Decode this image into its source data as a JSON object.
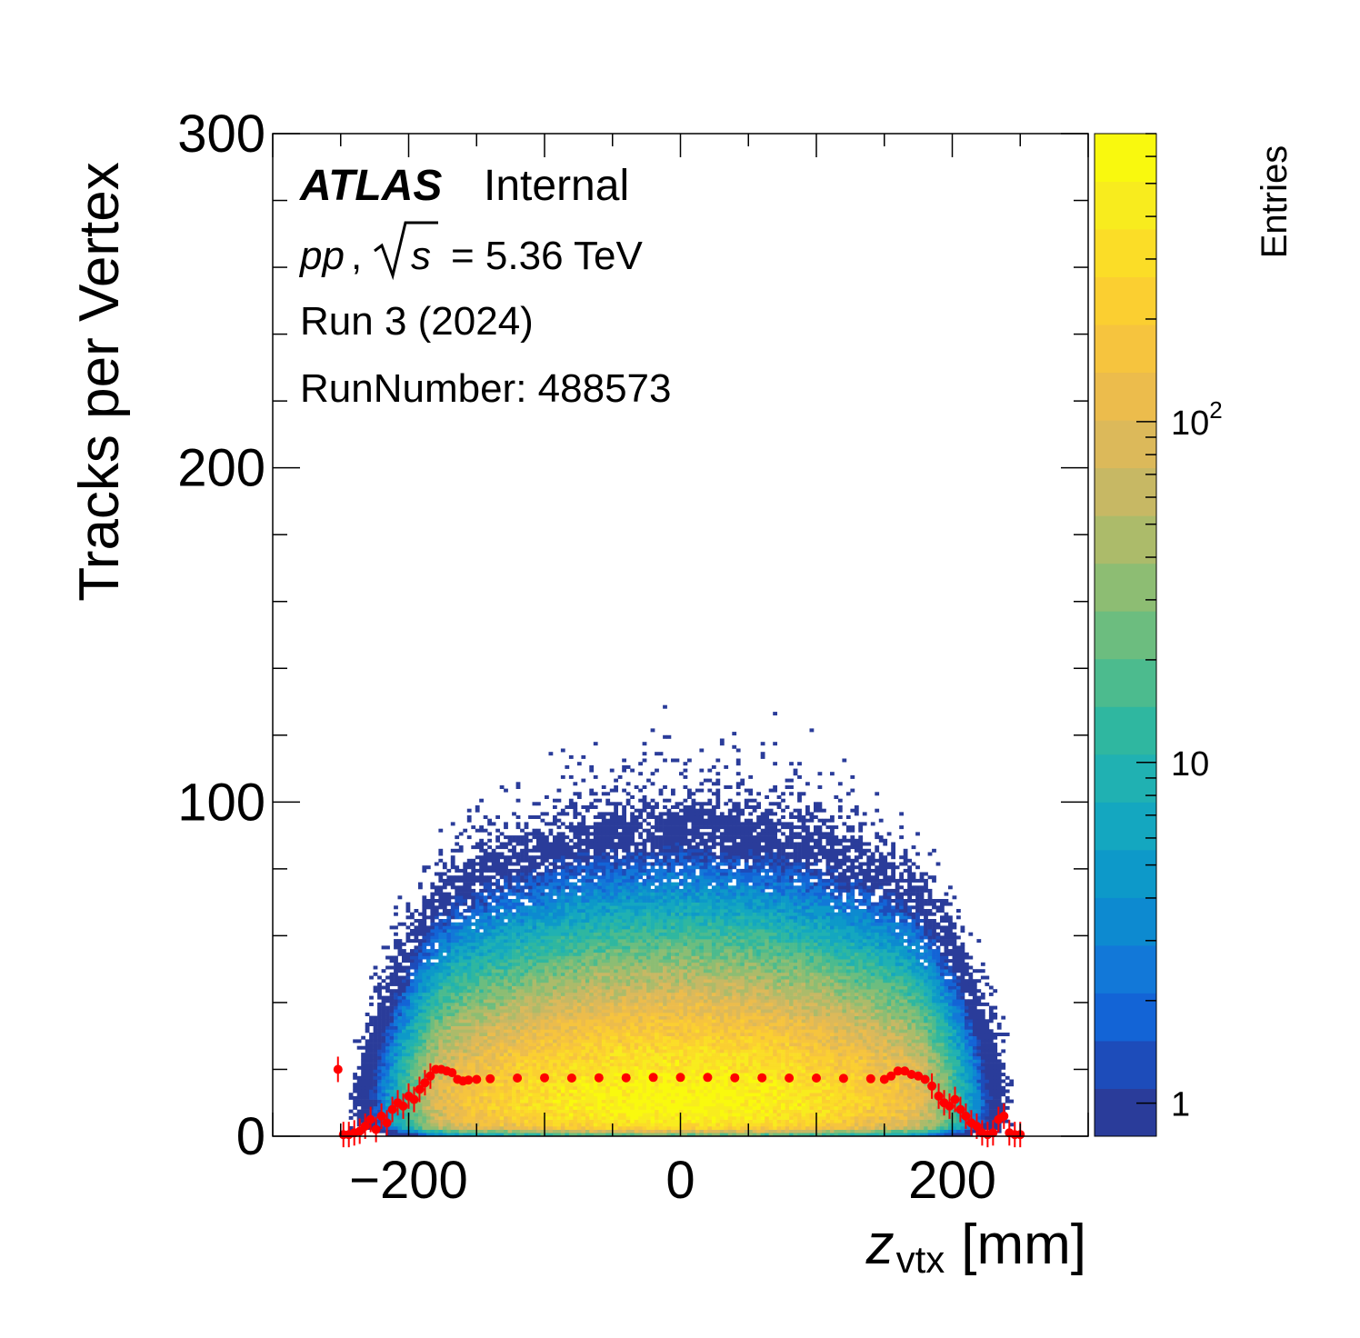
{
  "chart_data": {
    "type": "heatmap",
    "xlabel_main": "z",
    "xlabel_sub": "vtx",
    "xlabel_unit": "[mm]",
    "ylabel": "Tracks per Vertex",
    "xlim": [
      -300,
      300
    ],
    "ylim": [
      0,
      300
    ],
    "x_ticks": [
      {
        "value": -200,
        "label": "−200"
      },
      {
        "value": 0,
        "label": "0"
      },
      {
        "value": 200,
        "label": "200"
      }
    ],
    "y_ticks": [
      {
        "value": 0,
        "label": "0"
      },
      {
        "value": 100,
        "label": "100"
      },
      {
        "value": 200,
        "label": "200"
      },
      {
        "value": 300,
        "label": "300"
      }
    ],
    "colorbar": {
      "title": "Entries",
      "scale": "log",
      "range": [
        0.8,
        700
      ],
      "ticks": [
        {
          "value": 1,
          "label": "1"
        },
        {
          "value": 10,
          "label": "10"
        },
        {
          "value": 100,
          "label_base": "10",
          "label_exp": "2"
        }
      ],
      "palette": [
        "#2a3c9a",
        "#1d4cba",
        "#1364d6",
        "#1278d8",
        "#0d8ad0",
        "#0d99c9",
        "#14a7c0",
        "#20b1b2",
        "#2fb7a0",
        "#4cbb8e",
        "#6cbd7f",
        "#8dbd73",
        "#acbb6a",
        "#c7b864",
        "#dcb95a",
        "#ecbc4c",
        "#f6c43e",
        "#fbcf31",
        "#fbdd27",
        "#f8ec1e",
        "#f9f90e"
      ]
    },
    "density_model": {
      "description_of_shape": "semicircular band of entries centered at z=0",
      "z_extent": [
        -250,
        250
      ],
      "mean_tracks_core": 8,
      "peak_entries": 600
    },
    "profile_series": {
      "name": "",
      "color": "#ff0000",
      "points": [
        [
          -252,
          20
        ],
        [
          -248,
          0.5
        ],
        [
          -244,
          0.5
        ],
        [
          -240,
          1
        ],
        [
          -236,
          1.5
        ],
        [
          -232,
          3
        ],
        [
          -228,
          5
        ],
        [
          -224,
          2
        ],
        [
          -220,
          6
        ],
        [
          -216,
          4
        ],
        [
          -212,
          8
        ],
        [
          -208,
          10
        ],
        [
          -204,
          9
        ],
        [
          -200,
          12
        ],
        [
          -196,
          11
        ],
        [
          -192,
          14
        ],
        [
          -188,
          16
        ],
        [
          -184,
          18
        ],
        [
          -180,
          20
        ],
        [
          -176,
          20
        ],
        [
          -172,
          19.5
        ],
        [
          -168,
          19
        ],
        [
          -164,
          17
        ],
        [
          -160,
          16.5
        ],
        [
          -156,
          16.8
        ],
        [
          -150,
          17
        ],
        [
          -140,
          17.2
        ],
        [
          -120,
          17.4
        ],
        [
          -100,
          17.5
        ],
        [
          -80,
          17.4
        ],
        [
          -60,
          17.5
        ],
        [
          -40,
          17.5
        ],
        [
          -20,
          17.6
        ],
        [
          0,
          17.6
        ],
        [
          20,
          17.6
        ],
        [
          40,
          17.5
        ],
        [
          60,
          17.5
        ],
        [
          80,
          17.4
        ],
        [
          100,
          17.4
        ],
        [
          120,
          17.3
        ],
        [
          140,
          17.2
        ],
        [
          150,
          17
        ],
        [
          155,
          18
        ],
        [
          160,
          19.5
        ],
        [
          165,
          19.5
        ],
        [
          170,
          18.5
        ],
        [
          175,
          18
        ],
        [
          180,
          17
        ],
        [
          185,
          15
        ],
        [
          190,
          12
        ],
        [
          194,
          10
        ],
        [
          198,
          9
        ],
        [
          202,
          11
        ],
        [
          206,
          8
        ],
        [
          210,
          6
        ],
        [
          214,
          4
        ],
        [
          218,
          3
        ],
        [
          222,
          1
        ],
        [
          226,
          0.5
        ],
        [
          230,
          1
        ],
        [
          234,
          5
        ],
        [
          238,
          6
        ],
        [
          242,
          1
        ],
        [
          246,
          0.5
        ],
        [
          250,
          0.5
        ]
      ]
    }
  },
  "annotations": {
    "experiment": "ATLAS",
    "status": "Internal",
    "energy_prefix": "pp",
    "energy_sqrt_var": "s",
    "energy_value": "= 5.36 TeV",
    "run_period": "Run 3 (2024)",
    "run_number": "RunNumber: 488573"
  }
}
